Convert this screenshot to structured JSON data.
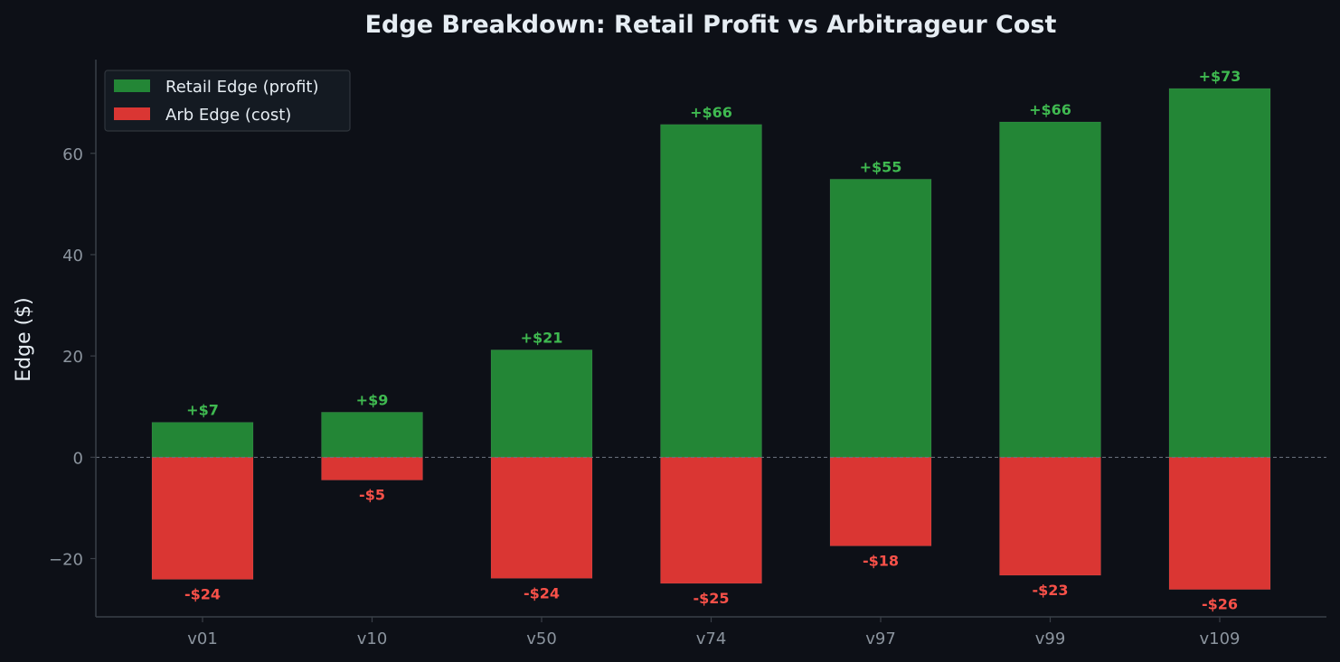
{
  "chart_data": {
    "type": "bar",
    "title": "Edge Breakdown: Retail Profit vs Arbitrageur Cost",
    "xlabel": "",
    "ylabel": "Edge ($)",
    "categories": [
      "v01",
      "v10",
      "v50",
      "v74",
      "v97",
      "v99",
      "v109"
    ],
    "series": [
      {
        "name": "Retail Edge (profit)",
        "color": "#238636",
        "values": [
          6.9,
          8.9,
          21.2,
          65.7,
          54.9,
          66.2,
          72.8
        ],
        "labels": [
          "+$7",
          "+$9",
          "+$21",
          "+$66",
          "+$55",
          "+$66",
          "+$73"
        ]
      },
      {
        "name": "Arb Edge (cost)",
        "color": "#da3633",
        "values": [
          -24.1,
          -4.5,
          -23.9,
          -24.9,
          -17.5,
          -23.3,
          -26.1
        ],
        "labels": [
          "-$24",
          "-$5",
          "-$24",
          "-$25",
          "-$18",
          "-$23",
          "-$26"
        ]
      }
    ],
    "ylim": [
      -31.5,
      78.5
    ],
    "yticks": [
      -20,
      0,
      20,
      40,
      60
    ],
    "ytick_labels": [
      "−20",
      "0",
      "20",
      "40",
      "60"
    ],
    "zero_line": true,
    "grid": false,
    "legend_position": "top-left"
  }
}
